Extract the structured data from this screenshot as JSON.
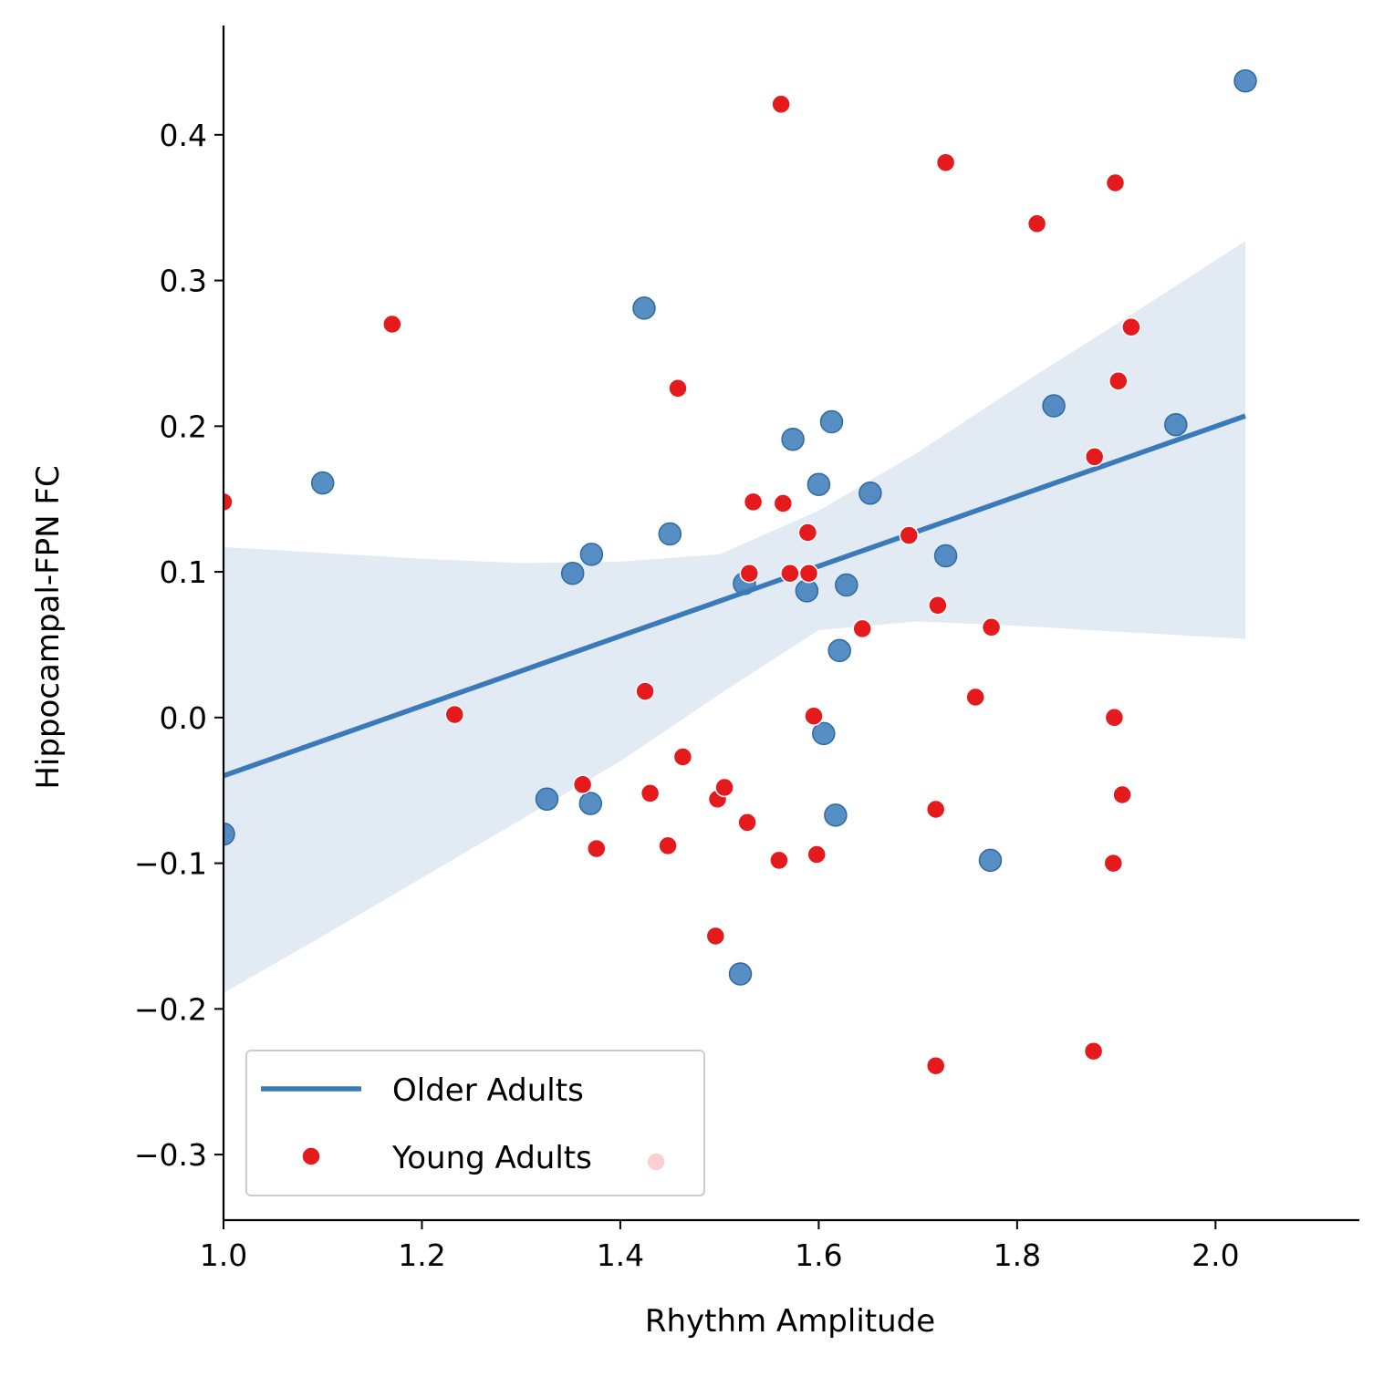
{
  "chart_data": {
    "type": "scatter",
    "xlabel": "Rhythm Amplitude",
    "ylabel": "Hippocampal-FPN FC",
    "xlim": [
      1.0,
      2.145
    ],
    "ylim": [
      -0.345,
      0.475
    ],
    "xticks": [
      1.0,
      1.2,
      1.4,
      1.6,
      1.8,
      2.0
    ],
    "xtick_labels": [
      "1.0",
      "1.2",
      "1.4",
      "1.6",
      "1.8",
      "2.0"
    ],
    "yticks": [
      -0.3,
      -0.2,
      -0.1,
      0.0,
      0.1,
      0.2,
      0.3,
      0.4
    ],
    "ytick_labels": [
      "−0.3",
      "−0.2",
      "−0.1",
      "0.0",
      "0.1",
      "0.2",
      "0.3",
      "0.4"
    ],
    "legend_placement": "lower-left",
    "grid": false,
    "series": [
      {
        "name": "Older Adults",
        "color": "#3a7ab8",
        "points": [
          {
            "x": 1.0,
            "y": -0.08
          },
          {
            "x": 1.1,
            "y": 0.161
          },
          {
            "x": 1.326,
            "y": -0.056
          },
          {
            "x": 1.352,
            "y": 0.099
          },
          {
            "x": 1.371,
            "y": 0.112
          },
          {
            "x": 1.37,
            "y": -0.059
          },
          {
            "x": 1.424,
            "y": 0.281
          },
          {
            "x": 1.45,
            "y": 0.126
          },
          {
            "x": 1.521,
            "y": -0.176
          },
          {
            "x": 1.525,
            "y": 0.092
          },
          {
            "x": 1.574,
            "y": 0.191
          },
          {
            "x": 1.588,
            "y": 0.087
          },
          {
            "x": 1.6,
            "y": 0.16
          },
          {
            "x": 1.605,
            "y": -0.011
          },
          {
            "x": 1.613,
            "y": 0.203
          },
          {
            "x": 1.617,
            "y": -0.067
          },
          {
            "x": 1.621,
            "y": 0.046
          },
          {
            "x": 1.628,
            "y": 0.091
          },
          {
            "x": 1.652,
            "y": 0.154
          },
          {
            "x": 1.728,
            "y": 0.111
          },
          {
            "x": 1.773,
            "y": -0.098
          },
          {
            "x": 1.837,
            "y": 0.214
          },
          {
            "x": 1.96,
            "y": 0.201
          },
          {
            "x": 2.03,
            "y": 0.437
          }
        ],
        "fit": {
          "x": [
            1.0,
            2.03
          ],
          "y": [
            -0.04,
            0.207
          ]
        },
        "ci_band": {
          "x": [
            1.0,
            1.1,
            1.2,
            1.3,
            1.4,
            1.5,
            1.6,
            1.7,
            1.8,
            1.9,
            2.03
          ],
          "upper": [
            0.117,
            0.113,
            0.109,
            0.106,
            0.107,
            0.112,
            0.142,
            0.182,
            0.227,
            0.27,
            0.327
          ],
          "lower": [
            -0.189,
            -0.15,
            -0.11,
            -0.07,
            -0.03,
            0.016,
            0.06,
            0.066,
            0.063,
            0.059,
            0.054
          ]
        }
      },
      {
        "name": "Young Adults",
        "color": "#e41a1c",
        "points": [
          {
            "x": 1.0,
            "y": 0.148
          },
          {
            "x": 1.17,
            "y": 0.27
          },
          {
            "x": 1.233,
            "y": 0.002
          },
          {
            "x": 1.362,
            "y": -0.046
          },
          {
            "x": 1.376,
            "y": -0.09
          },
          {
            "x": 1.425,
            "y": 0.018
          },
          {
            "x": 1.43,
            "y": -0.052
          },
          {
            "x": 1.436,
            "y": -0.305
          },
          {
            "x": 1.448,
            "y": -0.088
          },
          {
            "x": 1.458,
            "y": 0.226
          },
          {
            "x": 1.463,
            "y": -0.027
          },
          {
            "x": 1.496,
            "y": -0.15
          },
          {
            "x": 1.498,
            "y": -0.056
          },
          {
            "x": 1.505,
            "y": -0.048
          },
          {
            "x": 1.528,
            "y": -0.072
          },
          {
            "x": 1.53,
            "y": 0.099
          },
          {
            "x": 1.534,
            "y": 0.148
          },
          {
            "x": 1.56,
            "y": -0.098
          },
          {
            "x": 1.562,
            "y": 0.421
          },
          {
            "x": 1.564,
            "y": 0.147
          },
          {
            "x": 1.571,
            "y": 0.099
          },
          {
            "x": 1.589,
            "y": 0.127
          },
          {
            "x": 1.59,
            "y": 0.099
          },
          {
            "x": 1.595,
            "y": 0.001
          },
          {
            "x": 1.598,
            "y": -0.094
          },
          {
            "x": 1.644,
            "y": 0.061
          },
          {
            "x": 1.691,
            "y": 0.125
          },
          {
            "x": 1.718,
            "y": -0.063
          },
          {
            "x": 1.718,
            "y": -0.239
          },
          {
            "x": 1.72,
            "y": 0.077
          },
          {
            "x": 1.728,
            "y": 0.381
          },
          {
            "x": 1.758,
            "y": 0.014
          },
          {
            "x": 1.774,
            "y": 0.062
          },
          {
            "x": 1.82,
            "y": 0.339
          },
          {
            "x": 1.877,
            "y": -0.229
          },
          {
            "x": 1.878,
            "y": 0.179
          },
          {
            "x": 1.897,
            "y": -0.1
          },
          {
            "x": 1.898,
            "y": 0.0
          },
          {
            "x": 1.899,
            "y": 0.367
          },
          {
            "x": 1.902,
            "y": 0.231
          },
          {
            "x": 1.906,
            "y": -0.053
          },
          {
            "x": 1.915,
            "y": 0.268
          }
        ]
      }
    ]
  }
}
